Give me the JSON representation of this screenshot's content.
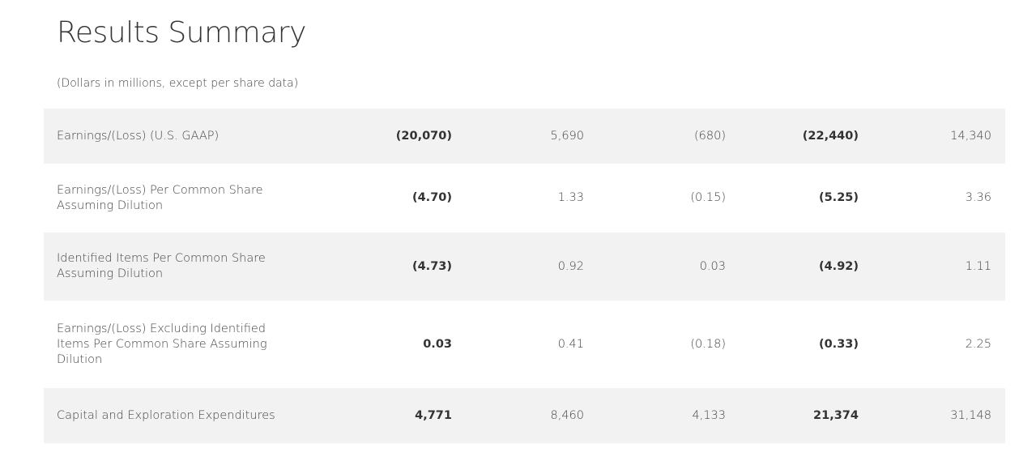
{
  "title": "Results Summary",
  "subtitle": "(Dollars in millions, except per share data)",
  "rows": [
    {
      "label": "Earnings/(Loss) (U.S. GAAP)",
      "values": [
        "(20,070)",
        "5,690",
        "(680)",
        "(22,440)",
        "14,340"
      ]
    },
    {
      "label": "Earnings/(Loss) Per Common Share Assuming Dilution",
      "values": [
        "(4.70)",
        "1.33",
        "(0.15)",
        "(5.25)",
        "3.36"
      ]
    },
    {
      "label": "Identified Items Per Common Share Assuming Dilution",
      "values": [
        "(4.73)",
        "0.92",
        "0.03",
        "(4.92)",
        "1.11"
      ]
    },
    {
      "label": "Earnings/(Loss) Excluding Identified Items Per Common Share Assuming Dilution",
      "values": [
        "0.03",
        "0.41",
        "(0.18)",
        "(0.33)",
        "2.25"
      ]
    },
    {
      "label": "Capital and Exploration Expenditures",
      "values": [
        "4,771",
        "8,460",
        "4,133",
        "21,374",
        "31,148"
      ]
    }
  ],
  "colors": {
    "row_shade": "#f1f2f1",
    "text": "#333333"
  }
}
